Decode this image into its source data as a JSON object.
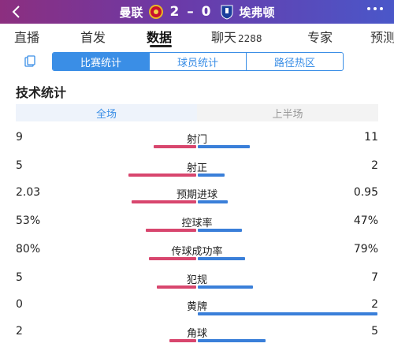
{
  "header": {
    "home_team": "曼联",
    "away_team": "埃弗顿",
    "score": "2 – 0",
    "back_icon": "chevron-left-icon",
    "more_icon": "more-dots-icon"
  },
  "tabs": [
    {
      "label": "直播"
    },
    {
      "label": "首发"
    },
    {
      "label": "数据",
      "active": true
    },
    {
      "label": "聊天",
      "count": "2288"
    },
    {
      "label": "专家"
    },
    {
      "label": "预测"
    }
  ],
  "segment": {
    "options": [
      "比赛统计",
      "球员统计",
      "路径热区"
    ],
    "active_index": 0
  },
  "section_title": "技术统计",
  "period": {
    "options": [
      "全场",
      "上半场"
    ],
    "active_index": 0
  },
  "colors": {
    "home": "#d8466e",
    "away": "#3a7fd9",
    "accent": "#3a8ee6"
  },
  "stats": [
    {
      "name": "射门",
      "left": "9",
      "right": "11",
      "left_share": 0.45,
      "right_share": 0.55
    },
    {
      "name": "射正",
      "left": "5",
      "right": "2",
      "left_share": 0.714,
      "right_share": 0.286
    },
    {
      "name": "预期进球",
      "left": "2.03",
      "right": "0.95",
      "left_share": 0.68,
      "right_share": 0.32
    },
    {
      "name": "控球率",
      "left": "53%",
      "right": "47%",
      "left_share": 0.53,
      "right_share": 0.47
    },
    {
      "name": "传球成功率",
      "left": "80%",
      "right": "79%",
      "left_share": 0.5,
      "right_share": 0.5
    },
    {
      "name": "犯规",
      "left": "5",
      "right": "7",
      "left_share": 0.417,
      "right_share": 0.583
    },
    {
      "name": "黄牌",
      "left": "0",
      "right": "2",
      "left_share": 0.0,
      "right_share": 1.0
    },
    {
      "name": "角球",
      "left": "2",
      "right": "5",
      "left_share": 0.286,
      "right_share": 0.714
    }
  ]
}
